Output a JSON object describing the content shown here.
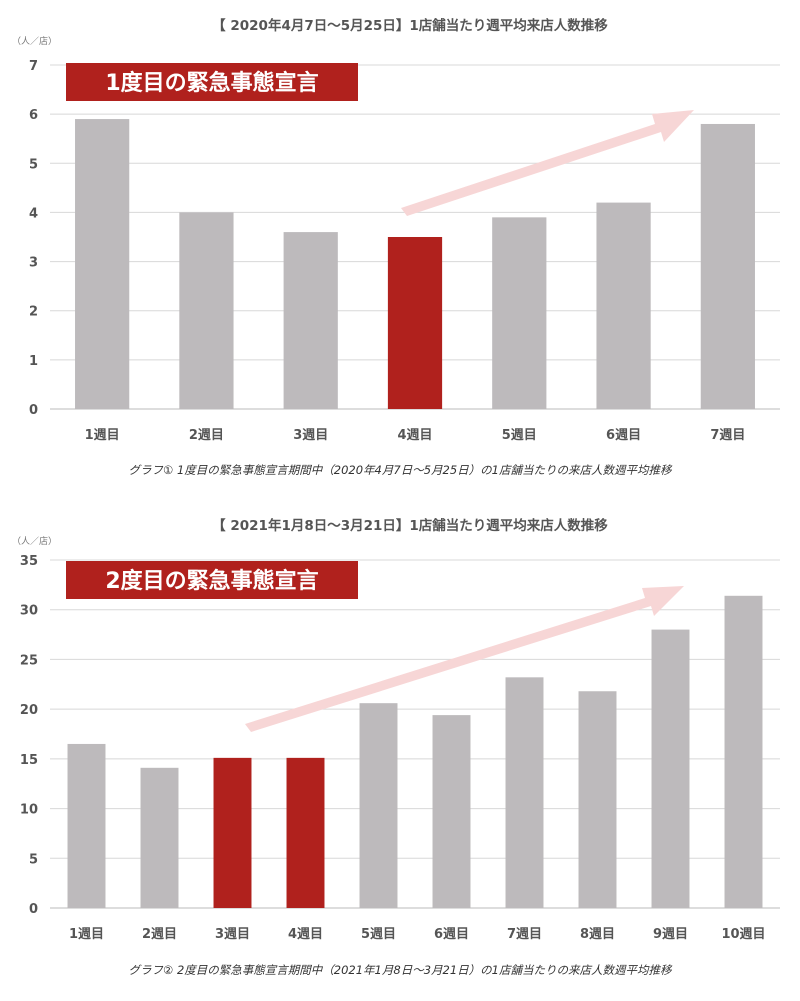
{
  "colors": {
    "bar_default": "#bdbabc",
    "bar_highlight": "#b0211d",
    "banner_bg": "#b0211d",
    "arrow": "#f7d6d6"
  },
  "chart_data": [
    {
      "type": "bar",
      "title": "【 2020年4月7日〜5月25日】1店舗当たり週平均来店人数推移",
      "unit": "（人／店）",
      "banner": "1度目の緊急事態宣言",
      "categories": [
        "1週目",
        "2週目",
        "3週目",
        "4週目",
        "5週目",
        "6週目",
        "7週目"
      ],
      "values": [
        5.9,
        4.0,
        3.6,
        3.5,
        3.9,
        4.2,
        5.8
      ],
      "highlight": [
        false,
        false,
        false,
        true,
        false,
        false,
        false
      ],
      "yticks": [
        "0",
        "1",
        "2",
        "3",
        "4",
        "5",
        "6",
        "7"
      ],
      "ylim": [
        0,
        7
      ],
      "grid": true,
      "caption": "グラフ① 1度目の緊急事態宣言期間中（2020年4月7日〜5月25日）の1店舗当たりの来店人数週平均推移"
    },
    {
      "type": "bar",
      "title": "【 2021年1月8日〜3月21日】1店舗当たり週平均来店人数推移",
      "unit": "（人／店）",
      "banner": "2度目の緊急事態宣言",
      "categories": [
        "1週目",
        "2週目",
        "3週目",
        "4週目",
        "5週目",
        "6週目",
        "7週目",
        "8週目",
        "9週目",
        "10週目"
      ],
      "values": [
        16.5,
        14.1,
        15.1,
        15.1,
        20.6,
        19.4,
        23.2,
        21.8,
        28.0,
        31.4
      ],
      "highlight": [
        false,
        false,
        true,
        true,
        false,
        false,
        false,
        false,
        false,
        false
      ],
      "yticks": [
        "0",
        "5",
        "10",
        "15",
        "20",
        "25",
        "30",
        "35"
      ],
      "ylim": [
        0,
        35
      ],
      "grid": true,
      "caption": "グラフ② 2度目の緊急事態宣言期間中（2021年1月8日〜3月21日）の1店舗当たりの来店人数週平均推移"
    }
  ]
}
